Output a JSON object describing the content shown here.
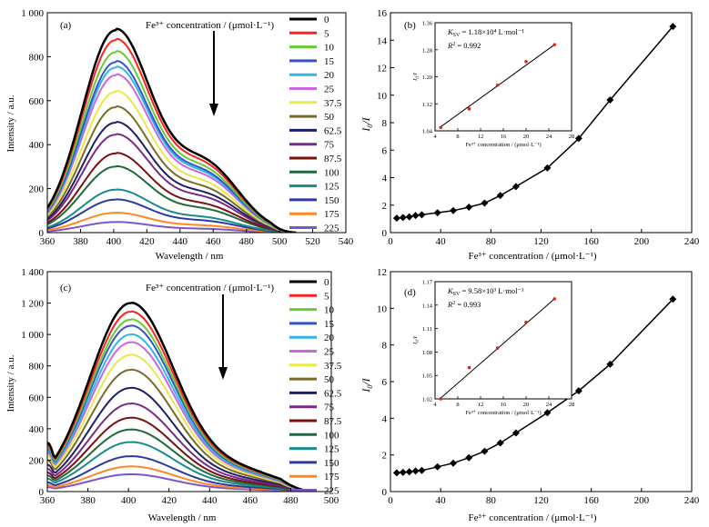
{
  "legend_colors": [
    "#000000",
    "#ff2020",
    "#66cc33",
    "#3355cc",
    "#33b5e5",
    "#cc66dd",
    "#e8e84a",
    "#7a6a2a",
    "#1f1f66",
    "#7a2a8a",
    "#7a1010",
    "#1f6a3a",
    "#1a8a8a",
    "#2a3aa0",
    "#ff8822",
    "#7a55cc"
  ],
  "chart_data": [
    {
      "id": "a",
      "type": "line",
      "panel_label": "(a)",
      "annotation": "Fe³⁺ concentration / (μmol·L⁻¹)",
      "xlabel": "Wavelength / nm",
      "ylabel": "Intensity / a.u.",
      "xlim": [
        360,
        540
      ],
      "ylim": [
        0,
        1000
      ],
      "x_ticks": [
        360,
        380,
        400,
        420,
        440,
        460,
        480,
        500,
        520,
        540
      ],
      "y_ticks": [
        0,
        200,
        400,
        600,
        800,
        1000
      ],
      "y_tick_labels": [
        "0",
        "200",
        "400",
        "600",
        "800",
        "1 000"
      ],
      "peak_x": 401,
      "x_end": 510,
      "series": [
        {
          "name": "0",
          "peak": 920
        },
        {
          "name": "5",
          "peak": 875
        },
        {
          "name": "10",
          "peak": 820
        },
        {
          "name": "15",
          "peak": 775
        },
        {
          "name": "20",
          "peak": 750
        },
        {
          "name": "25",
          "peak": 715
        },
        {
          "name": "37.5",
          "peak": 640
        },
        {
          "name": "50",
          "peak": 570
        },
        {
          "name": "62.5",
          "peak": 500
        },
        {
          "name": "75",
          "peak": 445
        },
        {
          "name": "87.5",
          "peak": 360
        },
        {
          "name": "100",
          "peak": 300
        },
        {
          "name": "125",
          "peak": 195
        },
        {
          "name": "150",
          "peak": 150
        },
        {
          "name": "175",
          "peak": 90
        },
        {
          "name": "225",
          "peak": 48
        }
      ]
    },
    {
      "id": "b",
      "type": "line",
      "panel_label": "(b)",
      "xlabel": "Fe³⁺ concentration / (μmol·L⁻¹)",
      "ylabel": "I0/I",
      "xlim": [
        0,
        240
      ],
      "ylim": [
        0,
        16
      ],
      "x_ticks": [
        0,
        40,
        80,
        120,
        160,
        200,
        240
      ],
      "y_ticks": [
        0,
        2,
        4,
        6,
        8,
        10,
        12,
        14,
        16
      ],
      "x": [
        5,
        10,
        15,
        20,
        25,
        37.5,
        50,
        62.5,
        75,
        87.5,
        100,
        125,
        150,
        175,
        225
      ],
      "y": [
        1.05,
        1.1,
        1.15,
        1.25,
        1.3,
        1.45,
        1.6,
        1.85,
        2.15,
        2.7,
        3.35,
        4.7,
        6.85,
        9.65,
        15.0
      ],
      "inset": {
        "xlabel": "Fe³⁺ concentration / (μmol·L⁻¹)",
        "ylabel": "I0/I",
        "ksv_label": "Ksv",
        "ksv_value": "= 1.18×10⁴ L·mol⁻¹",
        "r2_label": "R2",
        "r2_value": "= 0.992",
        "xlim": [
          4,
          28
        ],
        "ylim": [
          1.04,
          1.36
        ],
        "x_ticks": [
          4,
          8,
          12,
          16,
          20,
          24,
          28
        ],
        "y_ticks": [
          1.04,
          1.12,
          1.2,
          1.28,
          1.36
        ],
        "y_tick_labels": [
          "1.04",
          "1.12",
          "1.20",
          "1.28",
          "1.36"
        ],
        "x": [
          5,
          10,
          15,
          20,
          25
        ],
        "y": [
          1.05,
          1.105,
          1.175,
          1.245,
          1.295
        ],
        "fit": [
          [
            5,
            1.052
          ],
          [
            25,
            1.295
          ]
        ]
      }
    },
    {
      "id": "c",
      "type": "line",
      "panel_label": "(c)",
      "annotation": "Fe³⁺ concentration / (μmol·L⁻¹)",
      "xlabel": "Wavelength / nm",
      "ylabel": "Intensity / a.u.",
      "xlim": [
        360,
        500
      ],
      "ylim": [
        0,
        1400
      ],
      "x_ticks": [
        360,
        380,
        400,
        420,
        440,
        460,
        480,
        500
      ],
      "y_ticks": [
        0,
        200,
        400,
        600,
        800,
        1000,
        1200,
        1400
      ],
      "y_tick_labels": [
        "0",
        "200",
        "400",
        "600",
        "800",
        "1 000",
        "1 200",
        "1 400"
      ],
      "peak_x": 401,
      "x_end": 490,
      "series": [
        {
          "name": "0",
          "peak": 1200
        },
        {
          "name": "5",
          "peak": 1145
        },
        {
          "name": "10",
          "peak": 1095
        },
        {
          "name": "15",
          "peak": 1055
        },
        {
          "name": "20",
          "peak": 1000
        },
        {
          "name": "25",
          "peak": 950
        },
        {
          "name": "37.5",
          "peak": 870
        },
        {
          "name": "50",
          "peak": 775
        },
        {
          "name": "62.5",
          "peak": 660
        },
        {
          "name": "75",
          "peak": 560
        },
        {
          "name": "87.5",
          "peak": 470
        },
        {
          "name": "100",
          "peak": 395
        },
        {
          "name": "125",
          "peak": 315
        },
        {
          "name": "150",
          "peak": 225
        },
        {
          "name": "175",
          "peak": 160
        },
        {
          "name": "225",
          "peak": 110
        }
      ]
    },
    {
      "id": "d",
      "type": "line",
      "panel_label": "(d)",
      "xlabel": "Fe³⁺ concentration / (μmol·L⁻¹)",
      "ylabel": "I0/I",
      "xlim": [
        0,
        240
      ],
      "ylim": [
        0,
        12
      ],
      "x_ticks": [
        0,
        40,
        80,
        120,
        160,
        200,
        240
      ],
      "y_ticks": [
        0,
        2,
        4,
        6,
        8,
        10,
        12
      ],
      "x": [
        5,
        10,
        15,
        20,
        25,
        37.5,
        50,
        62.5,
        75,
        87.5,
        100,
        125,
        150,
        175,
        225
      ],
      "y": [
        1.02,
        1.05,
        1.08,
        1.12,
        1.15,
        1.35,
        1.55,
        1.85,
        2.2,
        2.65,
        3.2,
        4.3,
        5.5,
        6.95,
        10.5
      ],
      "inset": {
        "xlabel": "Fe³⁺ concentration / (μmol·L⁻¹)",
        "ylabel": "I0/I",
        "ksv_label": "Ksv",
        "ksv_value": "= 9.58×10³ L·mol⁻¹",
        "r2_label": "R2",
        "r2_value": "= 0.993",
        "xlim": [
          4,
          28
        ],
        "ylim": [
          1.02,
          1.17
        ],
        "x_ticks": [
          4,
          8,
          12,
          16,
          20,
          24,
          28
        ],
        "y_ticks": [
          1.02,
          1.05,
          1.08,
          1.11,
          1.14,
          1.17
        ],
        "y_tick_labels": [
          "1.02",
          "1.05",
          "1.08",
          "1.11",
          "1.14",
          "1.17"
        ],
        "x": [
          5,
          10,
          15,
          20,
          25
        ],
        "y": [
          1.02,
          1.06,
          1.085,
          1.118,
          1.148
        ],
        "fit": [
          [
            5,
            1.021
          ],
          [
            25,
            1.148
          ]
        ]
      }
    }
  ]
}
